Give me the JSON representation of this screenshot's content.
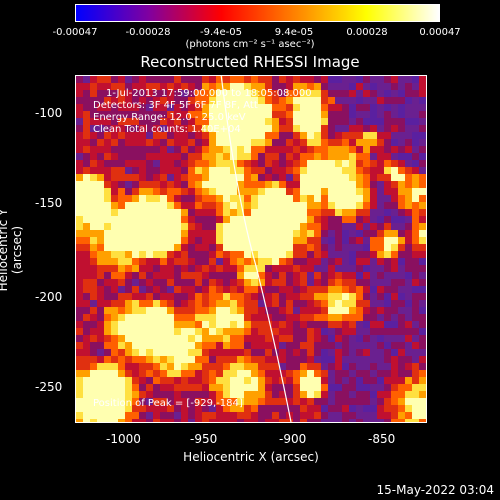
{
  "colorbar": {
    "ticks": [
      "-0.00047",
      "-0.00028",
      "-9.4e-05",
      "9.4e-05",
      "0.00028",
      "0.00047"
    ],
    "unit": "(photons cm⁻² s⁻¹ asec⁻²)",
    "colors": [
      "#0000ff",
      "#8000a0",
      "#ff0000",
      "#ff8000",
      "#ffff00",
      "#ffffff"
    ]
  },
  "title": "Reconstructed RHESSI Image",
  "overlay": {
    "time_range": "1-Jul-2013 17:59:00.000 to 18:05:08.000",
    "detectors": "Detectors: 3F 4F 5F 6F 7F 8F, Att",
    "energy_range": "Energy Range: 12.0 - 25.0 keV",
    "method_counts": "Clean    Total counts: 1.40E+04",
    "peak_position": "Position of Peak = [-929,-184]"
  },
  "axes": {
    "xlabel": "Heliocentric X (arcsec)",
    "ylabel": "Heliocentric Y (arcsec)",
    "xticks": [
      "-1000",
      "-950",
      "-900",
      "-850"
    ],
    "yticks": [
      "-100",
      "-150",
      "-200",
      "-250"
    ]
  },
  "footer": "15-May-2022 03:04"
}
